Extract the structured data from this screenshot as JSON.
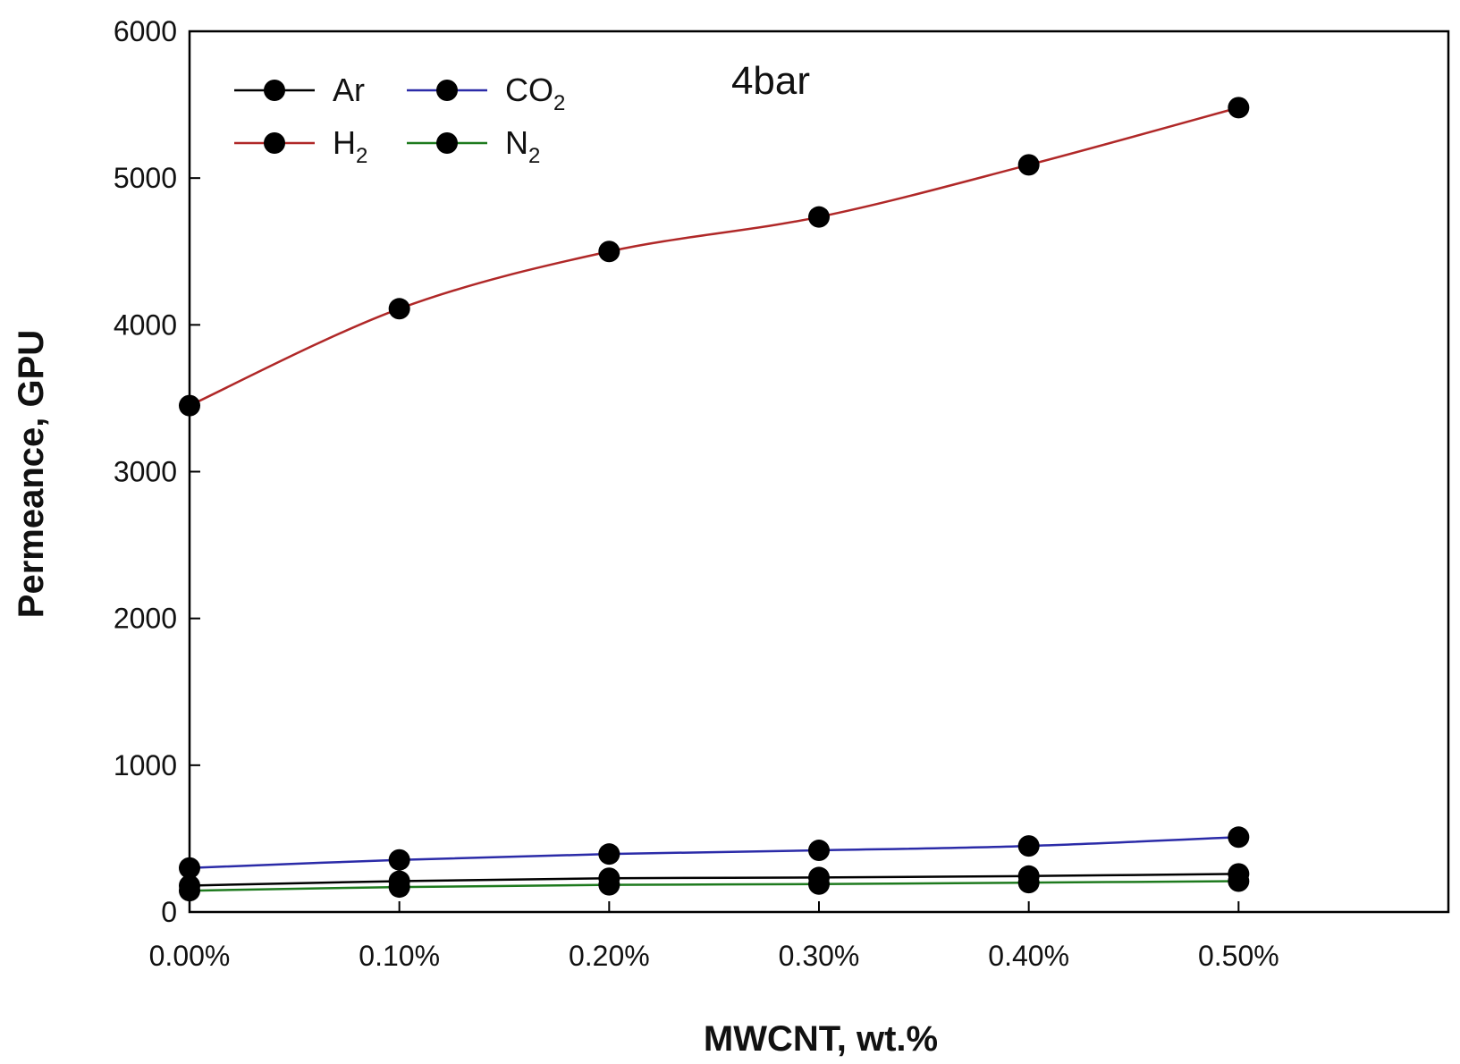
{
  "chart_data": {
    "type": "line",
    "title": "4bar",
    "xlabel": "MWCNT, wt.%",
    "ylabel": "Permeance, GPU",
    "categories": [
      "0.00%",
      "0.10%",
      "0.20%",
      "0.30%",
      "0.40%",
      "0.50%"
    ],
    "x": [
      0.0,
      0.1,
      0.2,
      0.3,
      0.4,
      0.5
    ],
    "xlim": [
      0.0,
      0.6
    ],
    "ylim": [
      0,
      6000
    ],
    "yticks": [
      "0",
      "1000",
      "2000",
      "3000",
      "4000",
      "5000",
      "6000"
    ],
    "ytick_values": [
      0,
      1000,
      2000,
      3000,
      4000,
      5000,
      6000
    ],
    "grid": false,
    "legend_position": "top-left",
    "series": [
      {
        "name": "Ar",
        "base": "Ar",
        "sub": "",
        "color": "#000000",
        "values": [
          180,
          210,
          230,
          235,
          245,
          260
        ]
      },
      {
        "name": "CO2",
        "base": "CO",
        "sub": "2",
        "color": "#2b2ba8",
        "values": [
          300,
          355,
          395,
          420,
          450,
          510
        ]
      },
      {
        "name": "H2",
        "base": "H",
        "sub": "2",
        "color": "#b02828",
        "values": [
          3450,
          4110,
          4500,
          4735,
          5090,
          5480
        ]
      },
      {
        "name": "N2",
        "base": "N",
        "sub": "2",
        "color": "#1e7a1e",
        "values": [
          145,
          170,
          185,
          190,
          200,
          210
        ]
      }
    ]
  }
}
